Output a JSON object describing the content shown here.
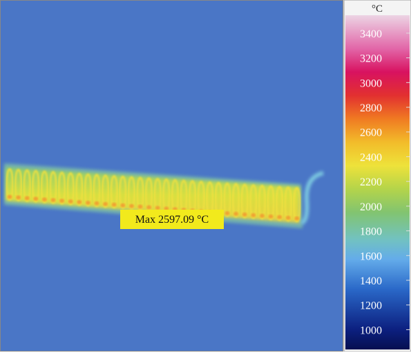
{
  "annotation": "Max 2597.09 °C",
  "colorbar": {
    "unit": "°C",
    "lim": [
      840,
      3545
    ],
    "ticks": [
      1000,
      1200,
      1400,
      1600,
      1800,
      2000,
      2200,
      2400,
      2600,
      2800,
      3000,
      3200,
      3400
    ]
  }
}
